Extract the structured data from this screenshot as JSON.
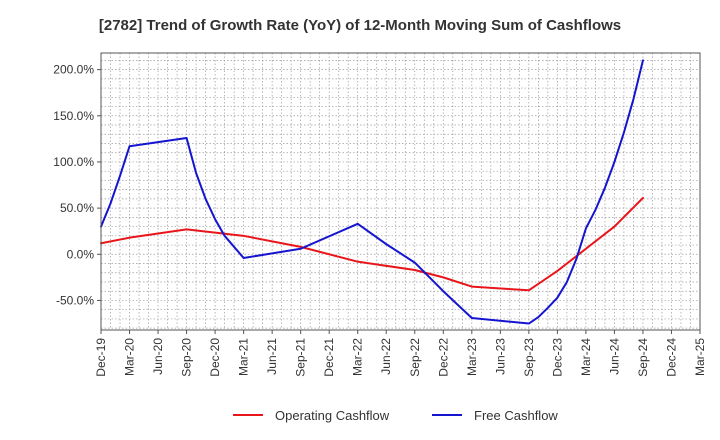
{
  "chart_data": {
    "type": "line",
    "title": "[2782]  Trend of Growth Rate (YoY) of 12-Month Moving Sum of Cashflows",
    "xlabel": "",
    "ylabel": "",
    "x_ticks": [
      "Dec-19",
      "Mar-20",
      "Jun-20",
      "Sep-20",
      "Dec-20",
      "Mar-21",
      "Jun-21",
      "Sep-21",
      "Dec-21",
      "Mar-22",
      "Jun-22",
      "Sep-22",
      "Dec-22",
      "Mar-23",
      "Jun-23",
      "Sep-23",
      "Dec-23",
      "Mar-24",
      "Jun-24",
      "Sep-24",
      "Dec-24",
      "Mar-25"
    ],
    "y_ticks": [
      {
        "value": 200,
        "label": "200.0%"
      },
      {
        "value": 150,
        "label": "150.0%"
      },
      {
        "value": 100,
        "label": "100.0%"
      },
      {
        "value": 50,
        "label": "50.0%"
      },
      {
        "value": 0,
        "label": "0.0%"
      },
      {
        "value": -50,
        "label": "-50.0%"
      }
    ],
    "ylim": [
      -82,
      218
    ],
    "grid": true,
    "legend_position": "bottom",
    "series": [
      {
        "name": "Operating Cashflow",
        "color": "#e8161b",
        "points": [
          {
            "x": "Dec-19",
            "y": 12
          },
          {
            "x": "Mar-20",
            "y": 18
          },
          {
            "x": "Sep-20",
            "y": 27
          },
          {
            "x": "Mar-21",
            "y": 20
          },
          {
            "x": "Sep-21",
            "y": 8
          },
          {
            "x": "Mar-22",
            "y": -8
          },
          {
            "x": "Sep-22",
            "y": -17
          },
          {
            "x": "Dec-22",
            "y": -25
          },
          {
            "x": "Mar-23",
            "y": -35
          },
          {
            "x": "Sep-23",
            "y": -39
          },
          {
            "x": "Dec-23",
            "y": -18
          },
          {
            "x": "Mar-24",
            "y": 6
          },
          {
            "x": "Jun-24",
            "y": 30
          },
          {
            "x": "Sep-24",
            "y": 61
          }
        ]
      },
      {
        "name": "Free Cashflow",
        "color": "#1515d0",
        "points": [
          {
            "x": "Dec-19",
            "y": 30
          },
          {
            "x": "Jan-20",
            "y": 55
          },
          {
            "x": "Feb-20",
            "y": 85
          },
          {
            "x": "Mar-20",
            "y": 117
          },
          {
            "x": "Sep-20",
            "y": 126
          },
          {
            "x": "Oct-20",
            "y": 88
          },
          {
            "x": "Nov-20",
            "y": 60
          },
          {
            "x": "Dec-20",
            "y": 38
          },
          {
            "x": "Jan-21",
            "y": 20
          },
          {
            "x": "Mar-21",
            "y": -4
          },
          {
            "x": "Sep-21",
            "y": 6
          },
          {
            "x": "Mar-22",
            "y": 33
          },
          {
            "x": "Jun-22",
            "y": 11
          },
          {
            "x": "Sep-22",
            "y": -9
          },
          {
            "x": "Dec-22",
            "y": -40
          },
          {
            "x": "Mar-23",
            "y": -69
          },
          {
            "x": "Sep-23",
            "y": -75
          },
          {
            "x": "Oct-23",
            "y": -68
          },
          {
            "x": "Nov-23",
            "y": -58
          },
          {
            "x": "Dec-23",
            "y": -47
          },
          {
            "x": "Jan-24",
            "y": -30
          },
          {
            "x": "Feb-24",
            "y": -5
          },
          {
            "x": "Mar-24",
            "y": 28
          },
          {
            "x": "Apr-24",
            "y": 48
          },
          {
            "x": "May-24",
            "y": 72
          },
          {
            "x": "Jun-24",
            "y": 100
          },
          {
            "x": "Jul-24",
            "y": 132
          },
          {
            "x": "Aug-24",
            "y": 168
          },
          {
            "x": "Sep-24",
            "y": 210
          }
        ]
      }
    ]
  }
}
